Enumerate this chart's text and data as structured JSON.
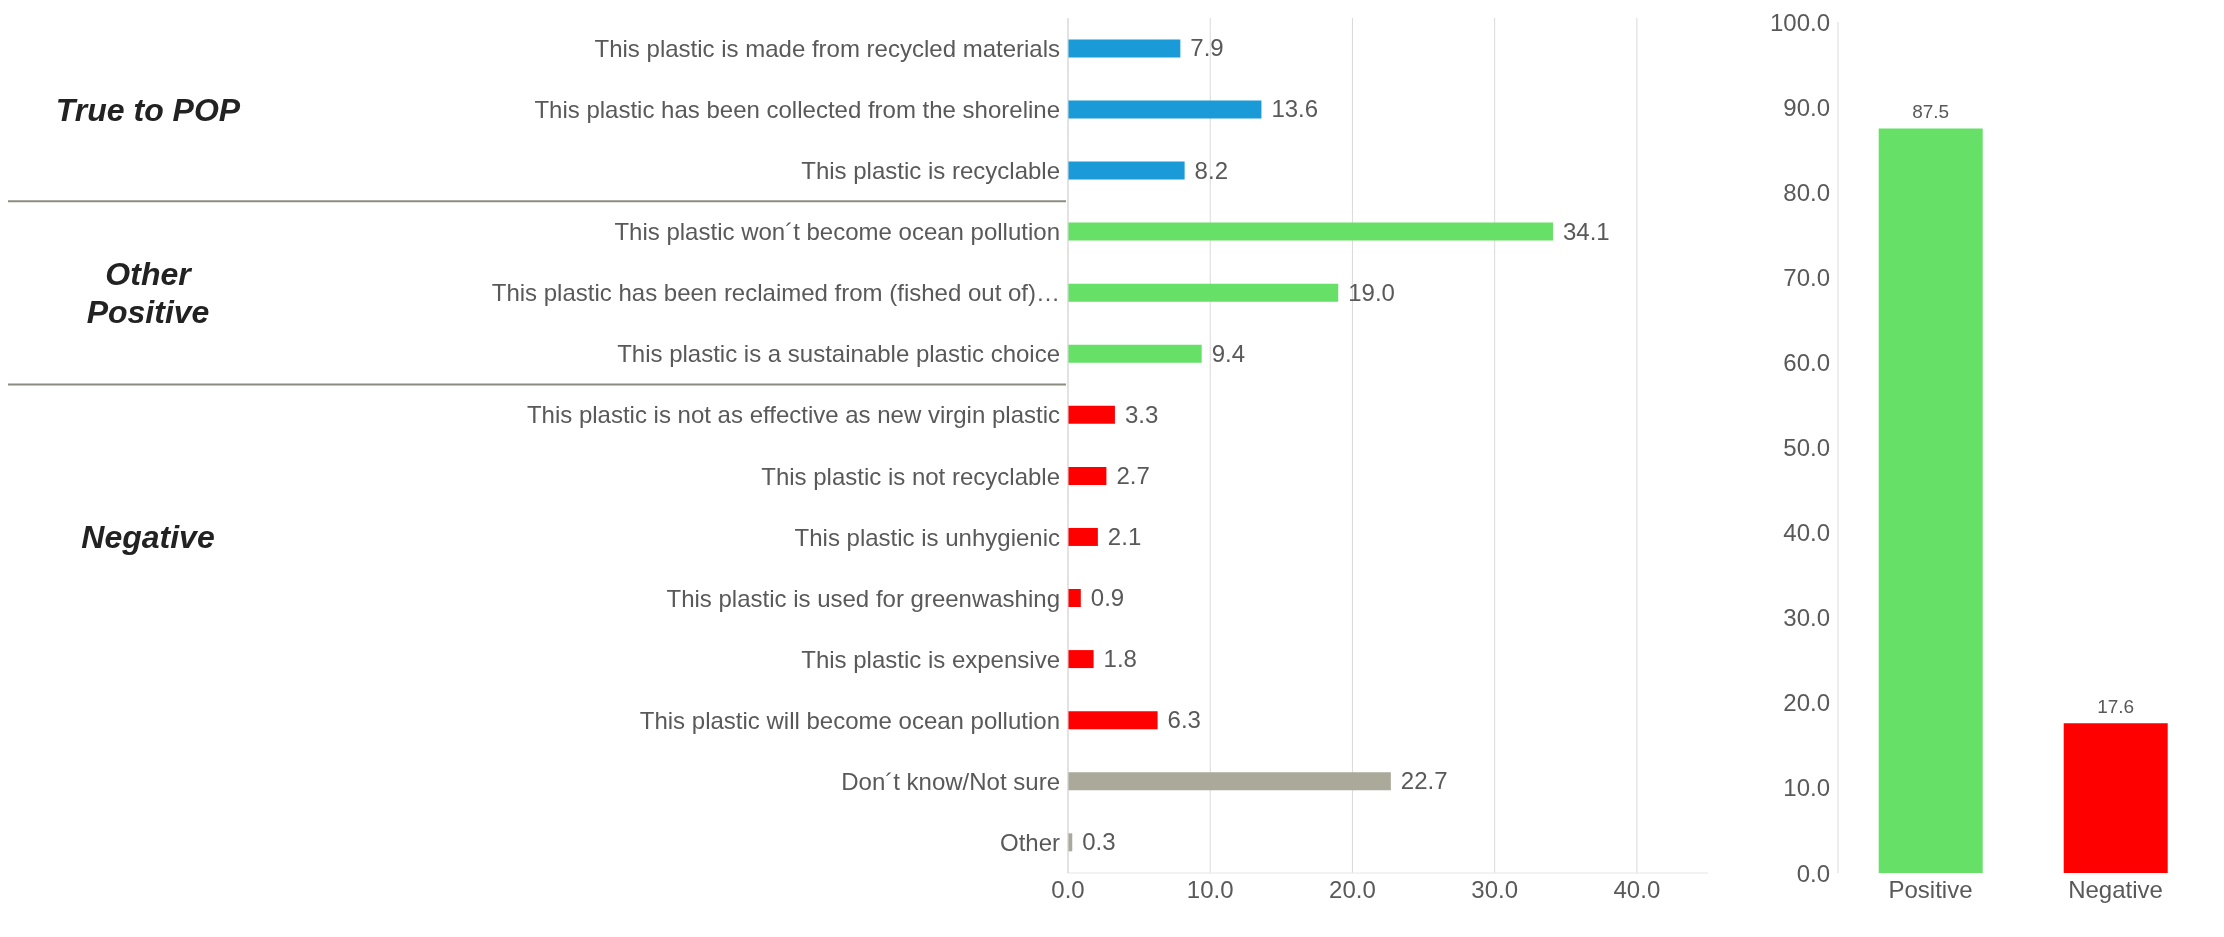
{
  "chart_data": [
    {
      "type": "bar",
      "orientation": "horizontal",
      "categories": [
        "This plastic is made from recycled materials",
        "This plastic has been collected from the shoreline",
        "This plastic is recyclable",
        "This plastic won´t become ocean pollution",
        "This plastic has been reclaimed from (fished out of)…",
        "This plastic is a sustainable plastic choice",
        "This plastic is not as effective as new virgin plastic",
        "This plastic is not recyclable",
        "This plastic is unhygienic",
        "This plastic is used for greenwashing",
        "This plastic is expensive",
        "This plastic will become ocean pollution",
        "Don´t know/Not sure",
        "Other"
      ],
      "values": [
        7.9,
        13.6,
        8.2,
        34.1,
        19.0,
        9.4,
        3.3,
        2.7,
        2.1,
        0.9,
        1.8,
        6.3,
        22.7,
        0.3
      ],
      "value_labels": [
        "7.9",
        "13.6",
        "8.2",
        "34.1",
        "19.0",
        "9.4",
        "3.3",
        "2.7",
        "2.1",
        "0.9",
        "1.8",
        "6.3",
        "22.7",
        "0.3"
      ],
      "colors": [
        "#1a9ad6",
        "#1a9ad6",
        "#1a9ad6",
        "#66e066",
        "#66e066",
        "#66e066",
        "#ff0000",
        "#ff0000",
        "#ff0000",
        "#ff0000",
        "#ff0000",
        "#ff0000",
        "#aaa99a",
        "#aaa99a"
      ],
      "xlim": [
        0,
        45
      ],
      "xticks": [
        {
          "value": 0,
          "label": "0.0"
        },
        {
          "value": 10,
          "label": "10.0"
        },
        {
          "value": 20,
          "label": "20.0"
        },
        {
          "value": 30,
          "label": "30.0"
        },
        {
          "value": 40,
          "label": "40.0"
        }
      ],
      "grid": "x",
      "annotations": [
        "True to POP",
        "Other Positive",
        "Negative"
      ]
    },
    {
      "type": "bar",
      "categories": [
        "Positive",
        "Negative"
      ],
      "values": [
        87.5,
        17.6
      ],
      "value_labels": [
        "87.5",
        "17.6"
      ],
      "colors": [
        "#66e066",
        "#ff0000"
      ],
      "ylim": [
        0,
        100
      ],
      "yticks": [
        {
          "value": 0,
          "label": "0.0"
        },
        {
          "value": 10,
          "label": "10.0"
        },
        {
          "value": 20,
          "label": "20.0"
        },
        {
          "value": 30,
          "label": "30.0"
        },
        {
          "value": 40,
          "label": "40.0"
        },
        {
          "value": 50,
          "label": "50.0"
        },
        {
          "value": 60,
          "label": "60.0"
        },
        {
          "value": 70,
          "label": "70.0"
        },
        {
          "value": 80,
          "label": "80.0"
        },
        {
          "value": 90,
          "label": "90.0"
        },
        {
          "value": 100,
          "label": "100.0"
        }
      ]
    }
  ]
}
